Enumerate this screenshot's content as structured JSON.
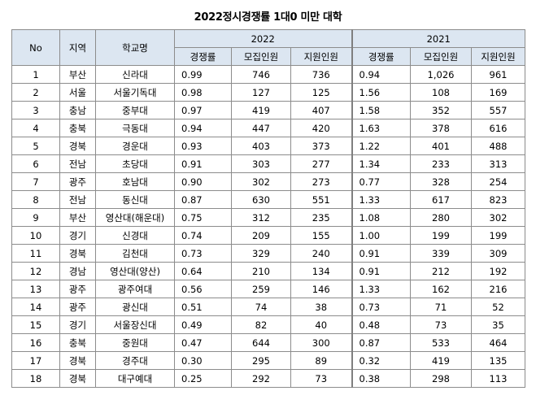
{
  "title": "2022정시경쟁률 1대0 미만 대학",
  "headers": {
    "no": "No",
    "region": "지역",
    "school": "학교명",
    "year_2022": "2022",
    "year_2021": "2021",
    "sub": [
      "경쟁률",
      "모집인원",
      "지원인원"
    ]
  },
  "rows": [
    {
      "no": "1",
      "region": "부산",
      "school": "신라대",
      "r22": "0.99",
      "m22": "746",
      "a22": "736",
      "r21": "0.94",
      "m21": "1,026",
      "a21": "961"
    },
    {
      "no": "2",
      "region": "서울",
      "school": "서울기독대",
      "r22": "0.98",
      "m22": "127",
      "a22": "125",
      "r21": "1.56",
      "m21": "108",
      "a21": "169"
    },
    {
      "no": "3",
      "region": "충남",
      "school": "중부대",
      "r22": "0.97",
      "m22": "419",
      "a22": "407",
      "r21": "1.58",
      "m21": "352",
      "a21": "557"
    },
    {
      "no": "4",
      "region": "충북",
      "school": "극동대",
      "r22": "0.94",
      "m22": "447",
      "a22": "420",
      "r21": "1.63",
      "m21": "378",
      "a21": "616"
    },
    {
      "no": "5",
      "region": "경북",
      "school": "경운대",
      "r22": "0.93",
      "m22": "403",
      "a22": "373",
      "r21": "1.22",
      "m21": "401",
      "a21": "488"
    },
    {
      "no": "6",
      "region": "전남",
      "school": "초당대",
      "r22": "0.91",
      "m22": "303",
      "a22": "277",
      "r21": "1.34",
      "m21": "233",
      "a21": "313"
    },
    {
      "no": "7",
      "region": "광주",
      "school": "호남대",
      "r22": "0.90",
      "m22": "302",
      "a22": "273",
      "r21": "0.77",
      "m21": "328",
      "a21": "254"
    },
    {
      "no": "8",
      "region": "전남",
      "school": "동신대",
      "r22": "0.87",
      "m22": "630",
      "a22": "551",
      "r21": "1.33",
      "m21": "617",
      "a21": "823"
    },
    {
      "no": "9",
      "region": "부산",
      "school": "영산대(해운대)",
      "r22": "0.75",
      "m22": "312",
      "a22": "235",
      "r21": "1.08",
      "m21": "280",
      "a21": "302"
    },
    {
      "no": "10",
      "region": "경기",
      "school": "신경대",
      "r22": "0.74",
      "m22": "209",
      "a22": "155",
      "r21": "1.00",
      "m21": "199",
      "a21": "199"
    },
    {
      "no": "11",
      "region": "경북",
      "school": "김천대",
      "r22": "0.73",
      "m22": "329",
      "a22": "240",
      "r21": "0.91",
      "m21": "339",
      "a21": "309"
    },
    {
      "no": "12",
      "region": "경남",
      "school": "영산대(양산)",
      "r22": "0.64",
      "m22": "210",
      "a22": "134",
      "r21": "0.91",
      "m21": "212",
      "a21": "192"
    },
    {
      "no": "13",
      "region": "광주",
      "school": "광주여대",
      "r22": "0.56",
      "m22": "259",
      "a22": "146",
      "r21": "1.33",
      "m21": "162",
      "a21": "216"
    },
    {
      "no": "14",
      "region": "광주",
      "school": "광신대",
      "r22": "0.51",
      "m22": "74",
      "a22": "38",
      "r21": "0.73",
      "m21": "71",
      "a21": "52"
    },
    {
      "no": "15",
      "region": "경기",
      "school": "서울장신대",
      "r22": "0.49",
      "m22": "82",
      "a22": "40",
      "r21": "0.48",
      "m21": "73",
      "a21": "35"
    },
    {
      "no": "16",
      "region": "충북",
      "school": "중원대",
      "r22": "0.47",
      "m22": "644",
      "a22": "300",
      "r21": "0.87",
      "m21": "533",
      "a21": "464"
    },
    {
      "no": "17",
      "region": "경북",
      "school": "경주대",
      "r22": "0.30",
      "m22": "295",
      "a22": "89",
      "r21": "0.32",
      "m21": "419",
      "a21": "135"
    },
    {
      "no": "18",
      "region": "경북",
      "school": "대구예대",
      "r22": "0.25",
      "m22": "292",
      "a22": "73",
      "r21": "0.38",
      "m21": "298",
      "a21": "113"
    }
  ]
}
